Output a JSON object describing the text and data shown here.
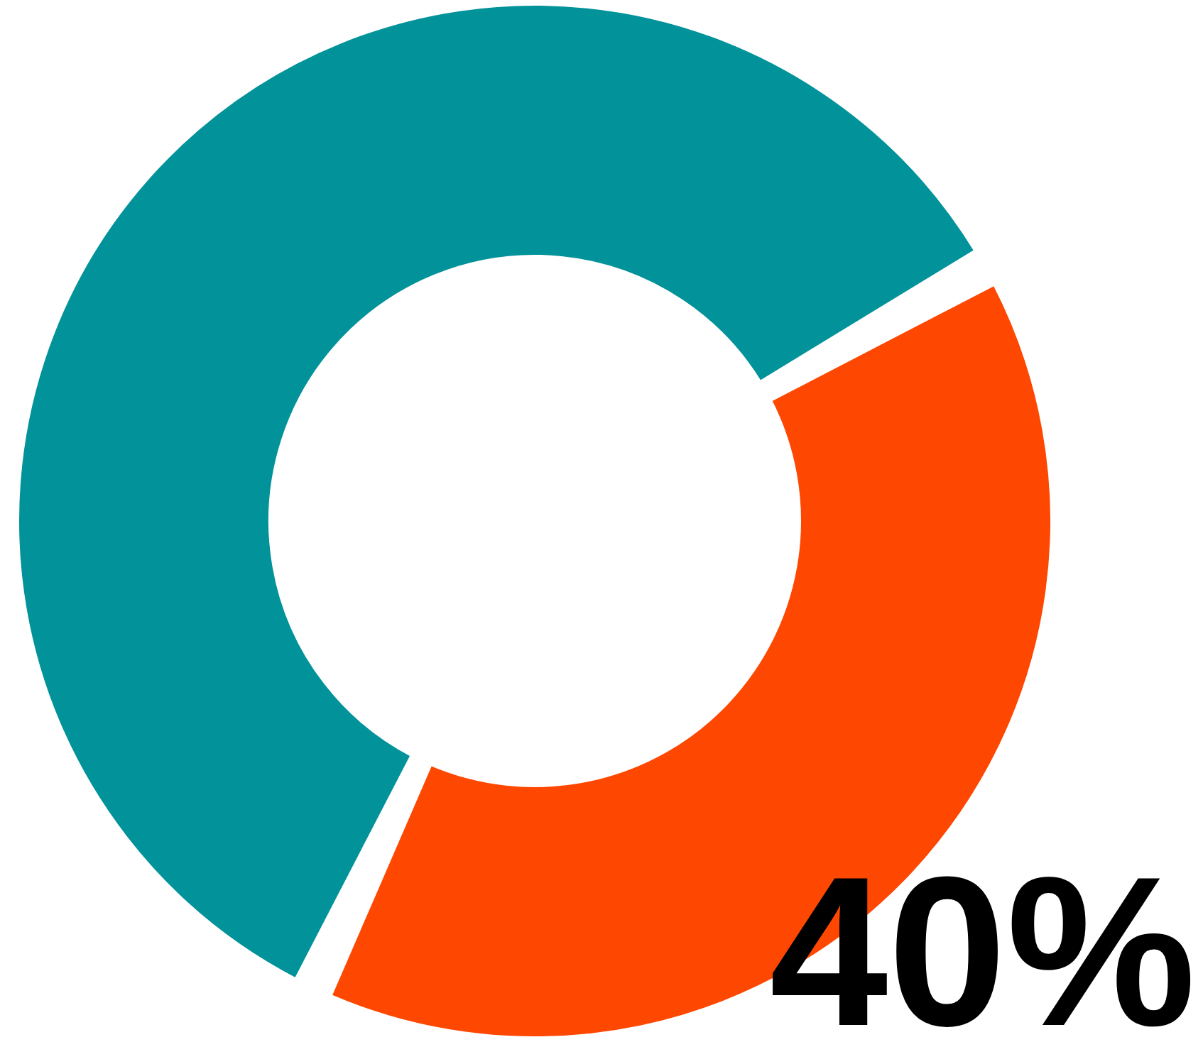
{
  "chart_data": {
    "type": "donut",
    "categories": [
      null,
      null
    ],
    "values": [
      40,
      60
    ],
    "colors": [
      "#fe4700",
      "#02929a"
    ],
    "value_labels": [
      "40%",
      null
    ]
  }
}
